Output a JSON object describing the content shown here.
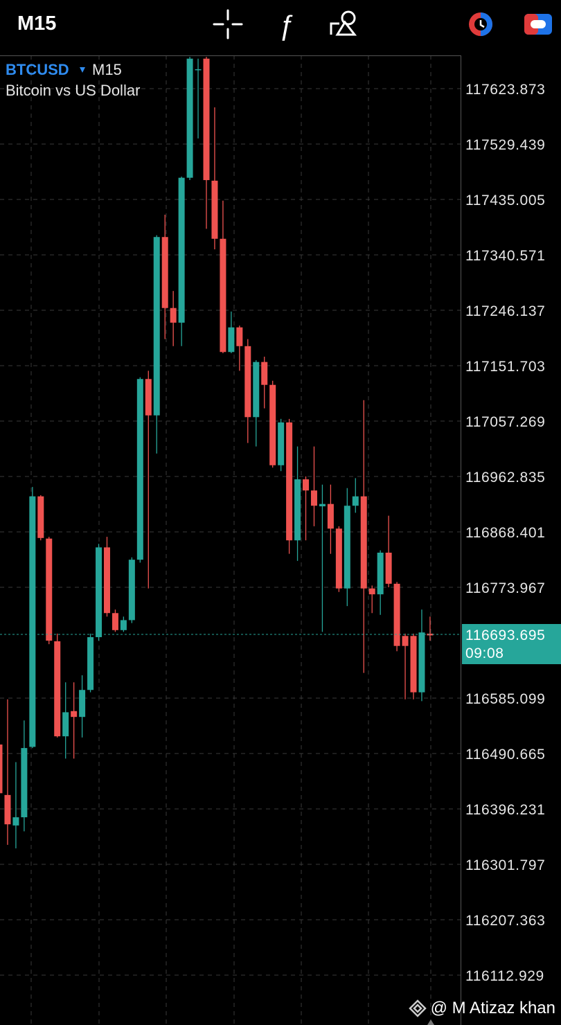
{
  "top_bar": {
    "timeframe": "M15"
  },
  "chart_data": {
    "type": "candlestick",
    "symbol": "BTCUSD",
    "timeframe": "M15",
    "description": "Bitcoin vs US Dollar",
    "up_color": "#26a69a",
    "down_color": "#ef5350",
    "grid": true,
    "open": [
      116506,
      116420,
      116368,
      116382,
      116502,
      116929,
      116857,
      116682,
      116520,
      116563,
      116553,
      116599,
      116689,
      116842,
      116730,
      116701,
      116718,
      116821,
      117129,
      117067,
      117371,
      117250,
      117225,
      117472,
      117657,
      117675,
      117467,
      117368,
      117175,
      117217,
      117185,
      117064,
      117158,
      117119,
      116982,
      117055,
      116854,
      116958,
      116939,
      116912,
      116916,
      116874,
      116772,
      116913,
      116929,
      116772,
      116762,
      116833,
      116780,
      116691,
      116691,
      116595,
      116695
    ],
    "high": [
      116642,
      116583,
      116476,
      116547,
      116945,
      116931,
      116860,
      116695,
      116612,
      116612,
      116624,
      116695,
      116848,
      116860,
      116736,
      116724,
      116825,
      117132,
      117143,
      117374,
      117409,
      117279,
      117474,
      117678,
      117675,
      117678,
      117592,
      117433,
      117244,
      117220,
      117197,
      117161,
      117167,
      117126,
      117061,
      117061,
      117014,
      116963,
      117014,
      116949,
      116949,
      116878,
      116943,
      116960,
      117093,
      116777,
      116837,
      116896,
      116783,
      116695,
      116695,
      116736,
      116724
    ],
    "low": [
      116417,
      116335,
      116329,
      116358,
      116500,
      116854,
      116677,
      116518,
      116482,
      116482,
      116518,
      116595,
      116683,
      116724,
      116698,
      116698,
      116713,
      116816,
      116772,
      117002,
      117197,
      117185,
      117185,
      117468,
      117539,
      117385,
      117350,
      117173,
      117173,
      117143,
      117020,
      117014,
      117079,
      116978,
      116972,
      116831,
      116819,
      116854,
      116878,
      116698,
      116831,
      116766,
      116742,
      116901,
      116628,
      116730,
      116727,
      116774,
      116665,
      116583,
      116583,
      116580,
      116683
    ],
    "close": [
      116423,
      116370,
      116382,
      116500,
      116929,
      116858,
      116683,
      116520,
      116561,
      116553,
      116599,
      116689,
      116842,
      116730,
      116701,
      116718,
      116821,
      117129,
      117067,
      117371,
      117250,
      117225,
      117472,
      117675,
      117657,
      117468,
      117368,
      117175,
      117217,
      117185,
      117064,
      117158,
      117119,
      116982,
      117055,
      116854,
      116958,
      116939,
      116913,
      116916,
      116874,
      116772,
      116913,
      116929,
      116772,
      116762,
      116833,
      116780,
      116674,
      116674,
      116595,
      116697,
      116692
    ],
    "ylim": [
      116027.94,
      117680.53
    ],
    "yticks": [
      117623.873,
      117529.439,
      117435.005,
      117340.571,
      117246.137,
      117151.703,
      117057.269,
      116962.835,
      116868.401,
      116773.967,
      116585.099,
      116490.665,
      116396.231,
      116301.797,
      116207.363,
      116112.929
    ],
    "current_price": 116693.695,
    "countdown": "09:08"
  },
  "watermark": "@ M Atizaz khan"
}
